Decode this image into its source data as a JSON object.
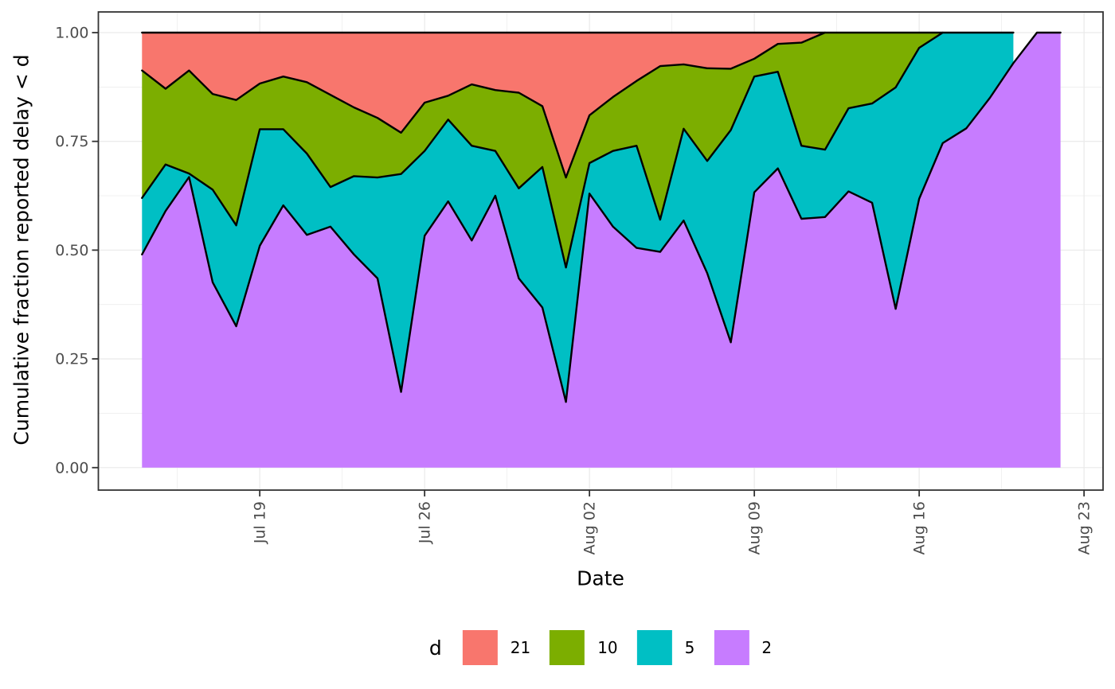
{
  "figure": {
    "xlabel": "Date",
    "ylabel": "Cumulative fraction reported delay < d",
    "legend": {
      "title": "d",
      "items": [
        {
          "label": "21",
          "color": "#F8766D"
        },
        {
          "label": "10",
          "color": "#7CAE00"
        },
        {
          "label": "5",
          "color": "#00BFC4"
        },
        {
          "label": "2",
          "color": "#C77CFF"
        }
      ]
    }
  },
  "chart_data": {
    "type": "area",
    "stacked": true,
    "title": "",
    "xlabel": "Date",
    "ylabel": "Cumulative fraction reported delay < d",
    "ylim": [
      0,
      1
    ],
    "grid": true,
    "legend_position": "bottom",
    "colors": {
      "grid": "#EBEBEB",
      "panel_border": "#333333",
      "tick_mark": "#333333",
      "tick_label": "#4D4D4D",
      "area_outline": "#000000",
      "background": "#FFFFFF"
    },
    "x_dates": [
      "Jul 14",
      "Jul 15",
      "Jul 16",
      "Jul 17",
      "Jul 18",
      "Jul 19",
      "Jul 20",
      "Jul 21",
      "Jul 22",
      "Jul 23",
      "Jul 24",
      "Jul 25",
      "Jul 26",
      "Jul 27",
      "Jul 28",
      "Jul 29",
      "Jul 30",
      "Jul 31",
      "Aug 01",
      "Aug 02",
      "Aug 03",
      "Aug 04",
      "Aug 05",
      "Aug 06",
      "Aug 07",
      "Aug 08",
      "Aug 09",
      "Aug 10",
      "Aug 11",
      "Aug 12",
      "Aug 13",
      "Aug 14",
      "Aug 15",
      "Aug 16",
      "Aug 17",
      "Aug 18",
      "Aug 19",
      "Aug 20",
      "Aug 21",
      "Aug 22"
    ],
    "x_tick_labels": [
      "Jul 19",
      "Jul 26",
      "Aug 02",
      "Aug 09",
      "Aug 16",
      "Aug 23"
    ],
    "x_tick_day_index": [
      5,
      12,
      19,
      26,
      33,
      40
    ],
    "x_minor_day_index": [
      1.5,
      8.5,
      15.5,
      22.5,
      29.5,
      36.5
    ],
    "y_tick_labels": [
      "0.00",
      "0.25",
      "0.50",
      "0.75",
      "1.00"
    ],
    "y_tick_values": [
      0,
      0.25,
      0.5,
      0.75,
      1
    ],
    "y_minor_values": [
      0.125,
      0.375,
      0.625,
      0.875
    ],
    "tops": {
      "purple": [
        0.49,
        0.59,
        0.668,
        0.426,
        0.325,
        0.51,
        0.603,
        0.535,
        0.554,
        0.49,
        0.435,
        0.174,
        0.533,
        0.612,
        0.522,
        0.625,
        0.435,
        0.368,
        0.151,
        0.63,
        0.554,
        0.505,
        0.496,
        0.568,
        0.447,
        0.288,
        0.633,
        0.688,
        0.572,
        0.576,
        0.635,
        0.609,
        0.365,
        0.618,
        0.746,
        0.78,
        0.85,
        0.93,
        1.0,
        1.0
      ],
      "teal": [
        0.62,
        0.697,
        0.676,
        0.639,
        0.557,
        0.778,
        0.778,
        0.722,
        0.645,
        0.67,
        0.667,
        0.675,
        0.728,
        0.8,
        0.74,
        0.728,
        0.642,
        0.691,
        0.46,
        0.7,
        0.728,
        0.74,
        0.57,
        0.779,
        0.705,
        0.776,
        0.899,
        0.91,
        0.74,
        0.731,
        0.826,
        0.837,
        0.874,
        0.965,
        1.0,
        1.0,
        1.0,
        1.0
      ],
      "green": [
        0.913,
        0.871,
        0.913,
        0.859,
        0.845,
        0.883,
        0.899,
        0.886,
        0.857,
        0.828,
        0.804,
        0.77,
        0.839,
        0.855,
        0.881,
        0.868,
        0.862,
        0.831,
        0.667,
        0.81,
        0.852,
        0.889,
        0.923,
        0.927,
        0.918,
        0.917,
        0.94,
        0.974,
        0.977,
        1.0,
        1.0,
        1.0,
        1.0,
        1.0,
        1.0
      ]
    },
    "series": [
      {
        "name": "21",
        "color": "#F8766D",
        "top": "one",
        "bottom": "green",
        "n": 30
      },
      {
        "name": "10",
        "color": "#7CAE00",
        "top": "green",
        "bottom": "teal",
        "n": 35
      },
      {
        "name": "5",
        "color": "#00BFC4",
        "top": "teal",
        "bottom": "purple",
        "n": 38
      },
      {
        "name": "2",
        "color": "#C77CFF",
        "top": "purple",
        "bottom": "zero",
        "n": 40
      }
    ]
  }
}
